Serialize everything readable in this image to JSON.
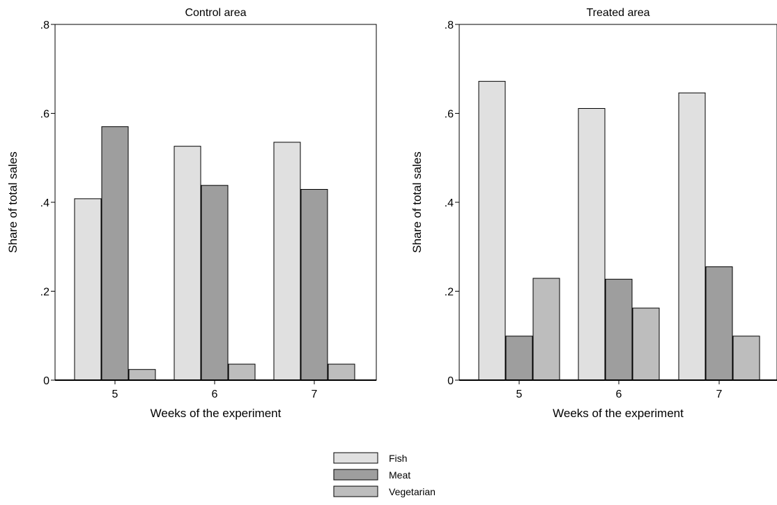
{
  "chart_data": [
    {
      "type": "bar",
      "title": "Control area",
      "xlabel": "Weeks of the experiment",
      "ylabel": "Share of total sales",
      "ylim": [
        0,
        0.8
      ],
      "yticks": [
        0,
        0.2,
        0.4,
        0.6,
        0.8
      ],
      "ytick_labels": [
        "0",
        ".2",
        ".4",
        ".6",
        ".8"
      ],
      "categories": [
        "5",
        "6",
        "7"
      ],
      "series": [
        {
          "name": "Fish",
          "values": [
            0.408,
            0.526,
            0.535
          ],
          "color": "#e0e0e0"
        },
        {
          "name": "Meat",
          "values": [
            0.57,
            0.438,
            0.429
          ],
          "color": "#9e9e9e"
        },
        {
          "name": "Vegetarian",
          "values": [
            0.024,
            0.036,
            0.036
          ],
          "color": "#bdbdbd"
        }
      ],
      "grid": false
    },
    {
      "type": "bar",
      "title": "Treated area",
      "xlabel": "Weeks of the experiment",
      "ylabel": "Share of total sales",
      "ylim": [
        0,
        0.8
      ],
      "yticks": [
        0,
        0.2,
        0.4,
        0.6,
        0.8
      ],
      "ytick_labels": [
        "0",
        ".2",
        ".4",
        ".6",
        ".8"
      ],
      "categories": [
        "5",
        "6",
        "7"
      ],
      "series": [
        {
          "name": "Fish",
          "values": [
            0.672,
            0.611,
            0.646
          ],
          "color": "#e0e0e0"
        },
        {
          "name": "Meat",
          "values": [
            0.099,
            0.227,
            0.255
          ],
          "color": "#9e9e9e"
        },
        {
          "name": "Vegetarian",
          "values": [
            0.229,
            0.162,
            0.099
          ],
          "color": "#bdbdbd"
        }
      ],
      "grid": false
    }
  ],
  "legend": {
    "position": "bottom-center",
    "items": [
      {
        "label": "Fish",
        "color": "#e0e0e0"
      },
      {
        "label": "Meat",
        "color": "#9e9e9e"
      },
      {
        "label": "Vegetarian",
        "color": "#bdbdbd"
      }
    ]
  }
}
